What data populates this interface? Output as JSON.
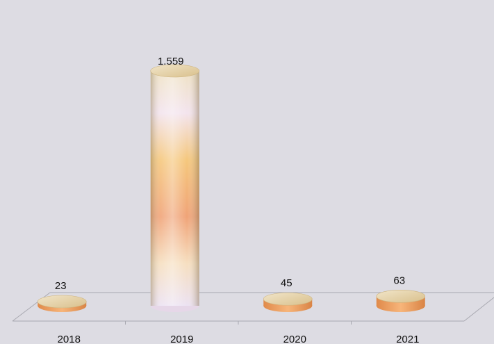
{
  "chart_data": {
    "type": "bar",
    "categories": [
      "2018",
      "2019",
      "2020",
      "2021"
    ],
    "values": [
      23,
      1559,
      45,
      63
    ],
    "value_labels": [
      "23",
      "1.559",
      "45",
      "63"
    ],
    "title": "",
    "xlabel": "",
    "ylabel": "",
    "ylim": [
      0,
      1559
    ],
    "grid": false,
    "legend": "none",
    "style": "3d-cylinder",
    "colors": {
      "background": "#dddce3",
      "floor_line": "#a8a8b0",
      "bar_top": "#ead8b0",
      "bar_mid": "#f2b670",
      "bar_light": "#f6e8f2"
    }
  }
}
